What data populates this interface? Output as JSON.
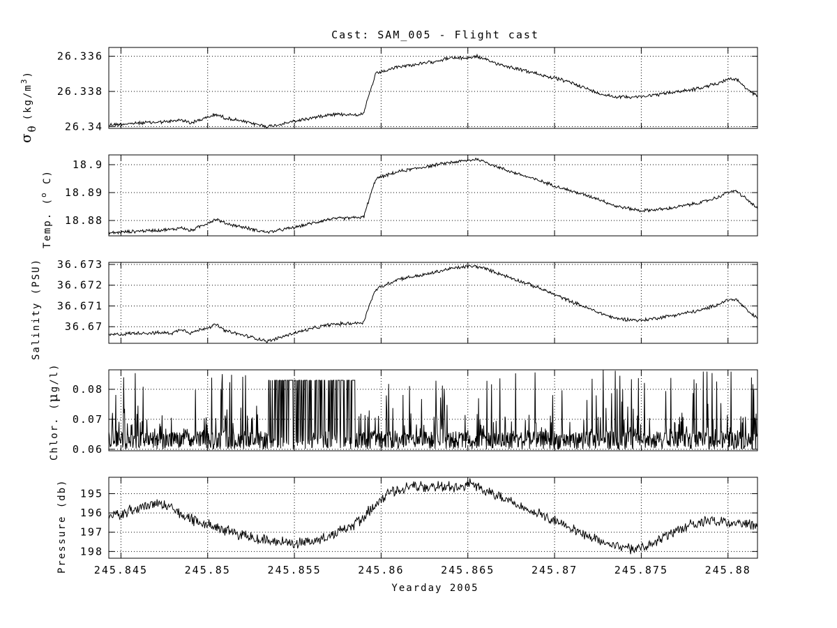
{
  "chart_data": {
    "type": "line",
    "title": "Cast: SAM_005 - Flight cast",
    "xlabel": "Yearday 2005",
    "xlim": [
      245.8443,
      245.8817
    ],
    "x_ticks": [
      245.845,
      245.85,
      245.855,
      245.86,
      245.865,
      245.87,
      245.875,
      245.88
    ],
    "x_tick_labels": [
      "245.845",
      "245.85",
      "245.855",
      "245.86",
      "245.865",
      "245.87",
      "245.875",
      "245.88"
    ],
    "grid": true,
    "panels": [
      {
        "key": "sigma",
        "ylabel_symbol": "σ",
        "ylabel_sub": "θ",
        "ylabel_units": "(kg/m",
        "ylabel_sup": "3",
        "ylabel_close": ")",
        "reversed": true,
        "ylim": [
          26.3355,
          26.3401
        ],
        "yticks": [
          26.336,
          26.338,
          26.34
        ],
        "ytick_labels": [
          "26.336",
          "26.338",
          "26.34"
        ],
        "series": {
          "x": [
            245.8443,
            245.846,
            245.848,
            245.8485,
            245.849,
            245.8505,
            245.851,
            245.853,
            245.8535,
            245.855,
            245.857,
            245.859,
            245.8592,
            245.8597,
            245.861,
            245.8625,
            245.864,
            245.865,
            245.8655,
            245.866,
            245.867,
            245.869,
            245.871,
            245.8725,
            245.8735,
            245.875,
            245.8765,
            245.8785,
            245.8795,
            245.88,
            245.8805,
            245.8812,
            245.8817
          ],
          "y": [
            26.3399,
            26.3398,
            26.3397,
            26.3396,
            26.3398,
            26.3393,
            26.3395,
            26.3399,
            26.34,
            26.3397,
            26.3393,
            26.3393,
            26.3385,
            26.337,
            26.3366,
            26.3364,
            26.3361,
            26.3361,
            26.336,
            26.3362,
            26.3365,
            26.337,
            26.3375,
            26.3381,
            26.3383,
            26.3383,
            26.3381,
            26.3378,
            26.3375,
            26.3373,
            26.3373,
            26.338,
            26.3382
          ],
          "noise": 0.00012
        }
      },
      {
        "key": "temp",
        "ylabel": "Temp. (",
        "ylabel_sup": "o",
        "ylabel_close": " C)",
        "reversed": false,
        "ylim": [
          18.8745,
          18.9035
        ],
        "yticks": [
          18.88,
          18.89,
          18.9
        ],
        "ytick_labels": [
          "18.88",
          "18.89",
          "18.9"
        ],
        "series": {
          "x": [
            245.8443,
            245.846,
            245.848,
            245.8485,
            245.849,
            245.8505,
            245.851,
            245.853,
            245.8535,
            245.855,
            245.857,
            245.859,
            245.8592,
            245.8597,
            245.861,
            245.8625,
            245.864,
            245.865,
            245.8655,
            245.866,
            245.867,
            245.869,
            245.871,
            245.8725,
            245.8735,
            245.875,
            245.8765,
            245.8785,
            245.8795,
            245.88,
            245.8805,
            245.8812,
            245.8817
          ],
          "y": [
            18.8755,
            18.8762,
            18.8768,
            18.8775,
            18.8763,
            18.8805,
            18.879,
            18.8763,
            18.8758,
            18.8775,
            18.8805,
            18.8812,
            18.8855,
            18.895,
            18.8975,
            18.8992,
            18.9008,
            18.9015,
            18.902,
            18.901,
            18.8985,
            18.8945,
            18.8905,
            18.8878,
            18.8852,
            18.8835,
            18.8842,
            18.8865,
            18.8885,
            18.8902,
            18.8905,
            18.887,
            18.8842
          ],
          "noise": 0.0007
        }
      },
      {
        "key": "salinity",
        "ylabel": "Salinity (PSU)",
        "reversed": false,
        "ylim": [
          36.6692,
          36.6731
        ],
        "yticks": [
          36.67,
          36.671,
          36.672,
          36.673
        ],
        "ytick_labels": [
          "36.67",
          "36.671",
          "36.672",
          "36.673"
        ],
        "series": {
          "x": [
            245.8443,
            245.846,
            245.848,
            245.8485,
            245.849,
            245.8505,
            245.851,
            245.853,
            245.8535,
            245.855,
            245.857,
            245.859,
            245.8592,
            245.8597,
            245.861,
            245.8625,
            245.864,
            245.865,
            245.8655,
            245.866,
            245.867,
            245.869,
            245.871,
            245.8725,
            245.8735,
            245.875,
            245.8765,
            245.8785,
            245.8795,
            245.88,
            245.8805,
            245.8812,
            245.8817
          ],
          "y": [
            36.6696,
            36.6697,
            36.6697,
            36.6699,
            36.6697,
            36.6701,
            36.6698,
            36.6694,
            36.6693,
            36.6697,
            36.6701,
            36.6702,
            36.6708,
            36.6718,
            36.6723,
            36.6725,
            36.6728,
            36.6729,
            36.6729,
            36.6728,
            36.6725,
            36.6719,
            36.6712,
            36.6707,
            36.6704,
            36.6703,
            36.6705,
            36.6708,
            36.6711,
            36.6713,
            36.6713,
            36.6707,
            36.6704
          ],
          "noise": 0.0001
        }
      },
      {
        "key": "chlor",
        "ylabel": "Chlor. (",
        "ylabel_symbol": "μ",
        "ylabel_close": "g/l)",
        "reversed": false,
        "ylim": [
          0.0595,
          0.0865
        ],
        "yticks": [
          0.06,
          0.07,
          0.08
        ],
        "ytick_labels": [
          "0.06",
          "0.07",
          "0.08"
        ],
        "series": {
          "baseline": 0.06,
          "typical_peak": 0.066,
          "max_value": 0.0865,
          "dense_band_x": [
            245.8535,
            245.8585
          ],
          "dense_band_level": 0.083
        }
      },
      {
        "key": "pressure",
        "ylabel": "Pressure (db)",
        "reversed": true,
        "ylim": [
          194.15,
          198.35
        ],
        "yticks": [
          195,
          196,
          197,
          198
        ],
        "ytick_labels": [
          "195",
          "196",
          "197",
          "198"
        ],
        "series": {
          "x": [
            245.8443,
            245.8455,
            245.847,
            245.8475,
            245.849,
            245.851,
            245.853,
            245.855,
            245.8565,
            245.8585,
            245.8605,
            245.862,
            245.864,
            245.8652,
            245.866,
            245.8675,
            245.869,
            245.871,
            245.873,
            245.8748,
            245.876,
            245.8775,
            245.879,
            245.8805,
            245.8817
          ],
          "y": [
            196.2,
            195.9,
            195.5,
            195.6,
            196.3,
            196.9,
            197.4,
            197.6,
            197.4,
            196.6,
            194.9,
            194.6,
            194.7,
            194.5,
            194.9,
            195.4,
            196.0,
            196.8,
            197.6,
            197.9,
            197.5,
            196.7,
            196.4,
            196.5,
            196.6
          ],
          "noise": 0.35
        }
      }
    ]
  }
}
